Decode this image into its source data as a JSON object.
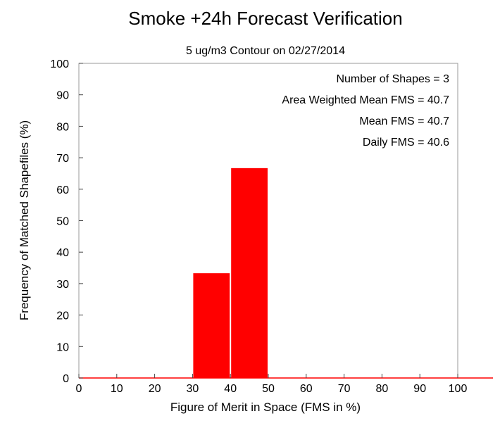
{
  "chart_data": {
    "type": "bar",
    "title": "Smoke +24h Forecast Verification",
    "subtitle": "5 ug/m3 Contour on 02/27/2014",
    "xlabel": "Figure of Merit in Space (FMS in %)",
    "ylabel": "Frequency of Matched Shapefiles (%)",
    "xlim": [
      0,
      100
    ],
    "ylim": [
      0,
      100
    ],
    "x_ticks": [
      "0",
      "10",
      "20",
      "30",
      "40",
      "50",
      "60",
      "70",
      "80",
      "90",
      "100"
    ],
    "y_ticks": [
      "0",
      "10",
      "20",
      "30",
      "40",
      "50",
      "60",
      "70",
      "80",
      "90",
      "100"
    ],
    "bins": [
      {
        "start": 0,
        "end": 10,
        "value": 0
      },
      {
        "start": 10,
        "end": 20,
        "value": 0
      },
      {
        "start": 20,
        "end": 30,
        "value": 0
      },
      {
        "start": 30,
        "end": 40,
        "value": 33.3
      },
      {
        "start": 40,
        "end": 50,
        "value": 66.7
      },
      {
        "start": 50,
        "end": 60,
        "value": 0
      },
      {
        "start": 60,
        "end": 70,
        "value": 0
      },
      {
        "start": 70,
        "end": 80,
        "value": 0
      },
      {
        "start": 80,
        "end": 90,
        "value": 0
      },
      {
        "start": 90,
        "end": 100,
        "value": 0
      }
    ],
    "bar_color": "#ff0000",
    "baseline_color": "#ff0000",
    "grid": false,
    "annotations": [
      "Number of Shapes = 3",
      "Area Weighted Mean FMS = 40.7",
      "Mean FMS = 40.7",
      "Daily FMS = 40.6"
    ]
  }
}
